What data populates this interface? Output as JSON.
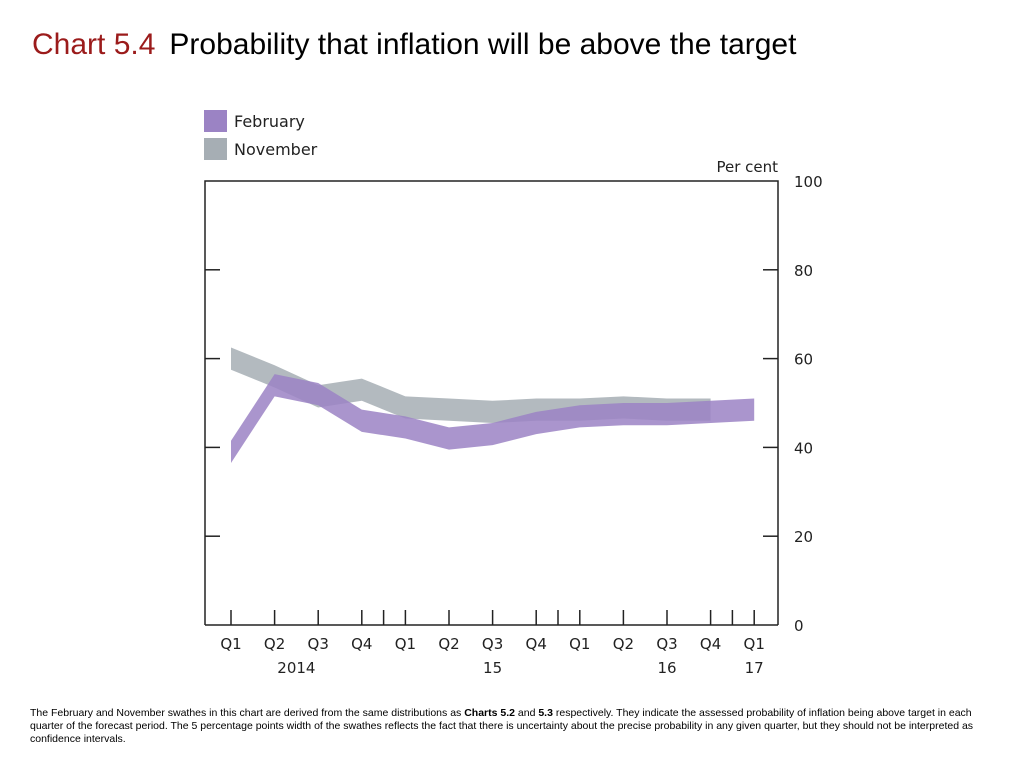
{
  "header": {
    "chart_number": "Chart 5.4",
    "title": "Probability that inflation will be above the target"
  },
  "colors": {
    "chart_number": "#9b1b1b",
    "february": "#9b83c4",
    "november": "#a6aeb4",
    "axis": "#222222"
  },
  "chart_data": {
    "type": "area",
    "unit_label": "Per cent",
    "ylim": [
      0,
      100
    ],
    "yticks": [
      0,
      20,
      40,
      60,
      80,
      100
    ],
    "legend": {
      "placement": "top-left",
      "entries": [
        "February",
        "November"
      ]
    },
    "categories": [
      "Q1 2014",
      "Q2 2014",
      "Q3 2014",
      "Q4 2014",
      "Q1 2015",
      "Q2 2015",
      "Q3 2015",
      "Q4 2015",
      "Q1 2016",
      "Q2 2016",
      "Q3 2016",
      "Q4 2016",
      "Q1 2017"
    ],
    "tick_labels": [
      "Q1",
      "Q2",
      "Q3",
      "Q4",
      "Q1",
      "Q2",
      "Q3",
      "Q4",
      "Q1",
      "Q2",
      "Q3",
      "Q4",
      "Q1"
    ],
    "year_labels": [
      {
        "index": 1,
        "label": "2014"
      },
      {
        "index": 6,
        "label": "15"
      },
      {
        "index": 10,
        "label": "16"
      },
      {
        "index": 12,
        "label": "17"
      }
    ],
    "swathe_width_pp": 5,
    "series": [
      {
        "name": "February",
        "lower": [
          36.5,
          51.5,
          49.5,
          43.5,
          42.0,
          39.5,
          40.5,
          43.0,
          44.5,
          45.0,
          45.0,
          45.5,
          46.0
        ],
        "upper": [
          41.5,
          56.5,
          54.5,
          48.5,
          47.0,
          44.5,
          45.5,
          48.0,
          49.5,
          50.0,
          50.0,
          50.5,
          51.0
        ]
      },
      {
        "name": "November",
        "lower": [
          57.5,
          53.5,
          49.0,
          50.5,
          46.5,
          46.0,
          45.5,
          46.0,
          46.0,
          46.5,
          46.0,
          46.0
        ],
        "upper": [
          62.5,
          58.5,
          54.0,
          55.5,
          51.5,
          51.0,
          50.5,
          51.0,
          51.0,
          51.5,
          51.0,
          51.0
        ]
      }
    ]
  },
  "footnote": {
    "part1": "The February and November swathes in this chart are derived from the same distributions as ",
    "ref1": "Charts 5.2",
    "part2": " and ",
    "ref2": "5.3",
    "part3": " respectively.  They indicate the assessed probability of inflation being above target in each quarter of the forecast period.  The 5 percentage points width of the swathes reflects the fact that there is uncertainty about the precise probability in any given quarter, but they should not be interpreted as confidence intervals."
  }
}
